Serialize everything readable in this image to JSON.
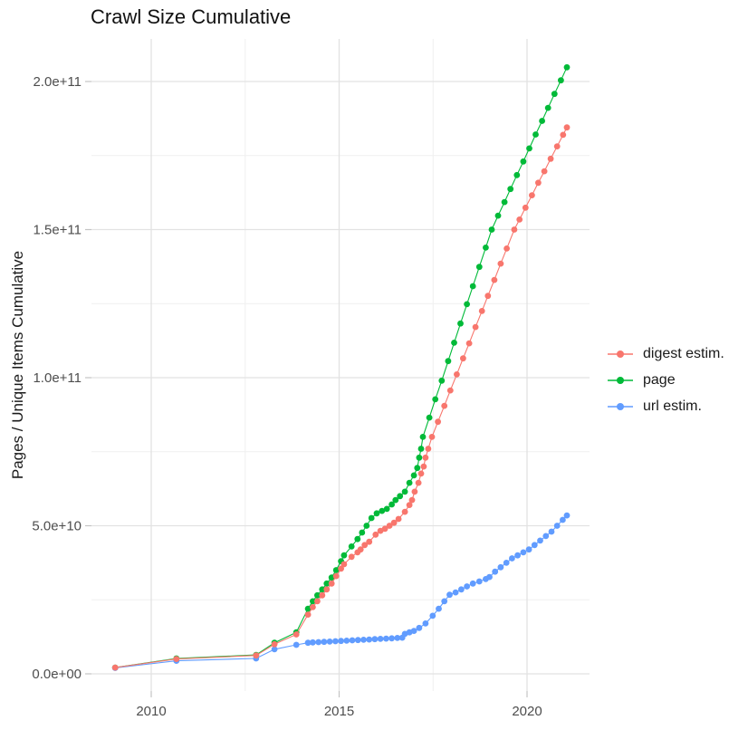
{
  "chart": {
    "title": "Crawl Size Cumulative",
    "ylabel": "Pages / Unique Items Cumulative",
    "xlabel": ""
  },
  "colors": {
    "background": "#ffffff",
    "grid_major": "#e2e2e2",
    "grid_minor": "#efefef",
    "tick_mark": "#c4c4c4",
    "tick_text": "#4d4d4d",
    "title_text": "#111111",
    "series_digest": "#F8766D",
    "series_page": "#00BA38",
    "series_url": "#619CFF"
  },
  "legend": {
    "position": "right"
  },
  "chart_data": {
    "type": "line",
    "points_shown": true,
    "title": "Crawl Size Cumulative",
    "xlabel": "",
    "ylabel": "Pages / Unique Items Cumulative",
    "grid": true,
    "legend_position": "right-center",
    "x_axis": {
      "range": [
        2008.4,
        2021.7
      ],
      "ticks": [
        {
          "label": "2010",
          "value": 2010
        },
        {
          "label": "2015",
          "value": 2015
        },
        {
          "label": "2020",
          "value": 2020
        }
      ],
      "minor": [
        2012.5,
        2017.5
      ]
    },
    "y_axis": {
      "range": [
        -8000000000.0,
        215000000000.0
      ],
      "ticks": [
        {
          "label": "0.0e+00",
          "value": 0
        },
        {
          "label": "5.0e+10",
          "value": 50000000000.0
        },
        {
          "label": "1.0e+11",
          "value": 100000000000.0
        },
        {
          "label": "1.5e+11",
          "value": 150000000000.0
        },
        {
          "label": "2.0e+11",
          "value": 200000000000.0
        }
      ],
      "minor": [
        25000000000.0,
        75000000000.0,
        125000000000.0,
        175000000000.0
      ]
    },
    "series": [
      {
        "name": "digest estim.",
        "color": "#F8766D",
        "points": [
          [
            2009.04,
            2100000000.0
          ],
          [
            2010.67,
            5000000000.0
          ],
          [
            2012.79,
            6200000000.0
          ],
          [
            2013.28,
            10000000000.0
          ],
          [
            2013.86,
            13300000000.0
          ],
          [
            2014.17,
            20000000000.0
          ],
          [
            2014.3,
            22500000000.0
          ],
          [
            2014.42,
            24500000000.0
          ],
          [
            2014.55,
            26500000000.0
          ],
          [
            2014.67,
            28500000000.0
          ],
          [
            2014.8,
            30500000000.0
          ],
          [
            2014.92,
            33000000000.0
          ],
          [
            2015.05,
            35500000000.0
          ],
          [
            2015.13,
            37000000000.0
          ],
          [
            2015.33,
            39500000000.0
          ],
          [
            2015.49,
            41000000000.0
          ],
          [
            2015.57,
            42000000000.0
          ],
          [
            2015.68,
            43500000000.0
          ],
          [
            2015.8,
            44600000000.0
          ],
          [
            2015.97,
            47000000000.0
          ],
          [
            2016.1,
            48300000000.0
          ],
          [
            2016.22,
            49000000000.0
          ],
          [
            2016.34,
            50000000000.0
          ],
          [
            2016.46,
            51000000000.0
          ],
          [
            2016.58,
            52300000000.0
          ],
          [
            2016.75,
            54700000000.0
          ],
          [
            2016.87,
            57000000000.0
          ],
          [
            2016.94,
            58700000000.0
          ],
          [
            2017.01,
            61500000000.0
          ],
          [
            2017.11,
            64500000000.0
          ],
          [
            2017.18,
            67600000000.0
          ],
          [
            2017.25,
            70000000000.0
          ],
          [
            2017.3,
            73000000000.0
          ],
          [
            2017.37,
            76000000000.0
          ],
          [
            2017.47,
            80000000000.0
          ],
          [
            2017.63,
            85100000000.0
          ],
          [
            2017.8,
            90500000000.0
          ],
          [
            2017.96,
            95700000000.0
          ],
          [
            2018.13,
            101100000000.0
          ],
          [
            2018.3,
            106500000000.0
          ],
          [
            2018.46,
            111600000000.0
          ],
          [
            2018.63,
            117100000000.0
          ],
          [
            2018.8,
            122500000000.0
          ],
          [
            2018.96,
            127600000000.0
          ],
          [
            2019.13,
            133000000000.0
          ],
          [
            2019.3,
            138500000000.0
          ],
          [
            2019.46,
            143600000000.0
          ],
          [
            2019.66,
            150000000000.0
          ],
          [
            2019.8,
            153400000000.0
          ],
          [
            2019.96,
            157400000000.0
          ],
          [
            2020.13,
            161600000000.0
          ],
          [
            2020.3,
            165800000000.0
          ],
          [
            2020.46,
            169700000000.0
          ],
          [
            2020.63,
            173900000000.0
          ],
          [
            2020.8,
            178100000000.0
          ],
          [
            2020.96,
            182000000000.0
          ],
          [
            2021.06,
            184500000000.0
          ]
        ]
      },
      {
        "name": "page",
        "color": "#00BA38",
        "points": [
          [
            2009.04,
            2100000000.0
          ],
          [
            2010.67,
            5200000000.0
          ],
          [
            2012.79,
            6400000000.0
          ],
          [
            2013.28,
            10500000000.0
          ],
          [
            2013.86,
            14000000000.0
          ],
          [
            2014.17,
            22000000000.0
          ],
          [
            2014.3,
            24500000000.0
          ],
          [
            2014.42,
            26500000000.0
          ],
          [
            2014.55,
            28500000000.0
          ],
          [
            2014.67,
            30500000000.0
          ],
          [
            2014.8,
            32500000000.0
          ],
          [
            2014.92,
            35000000000.0
          ],
          [
            2015.05,
            38000000000.0
          ],
          [
            2015.13,
            40000000000.0
          ],
          [
            2015.33,
            43000000000.0
          ],
          [
            2015.49,
            45500000000.0
          ],
          [
            2015.61,
            47700000000.0
          ],
          [
            2015.73,
            50000000000.0
          ],
          [
            2015.86,
            52600000000.0
          ],
          [
            2016.0,
            54200000000.0
          ],
          [
            2016.14,
            55000000000.0
          ],
          [
            2016.27,
            55700000000.0
          ],
          [
            2016.4,
            57200000000.0
          ],
          [
            2016.5,
            58700000000.0
          ],
          [
            2016.62,
            60000000000.0
          ],
          [
            2016.75,
            61500000000.0
          ],
          [
            2016.87,
            64500000000.0
          ],
          [
            2016.99,
            67000000000.0
          ],
          [
            2017.08,
            69500000000.0
          ],
          [
            2017.13,
            73000000000.0
          ],
          [
            2017.18,
            76000000000.0
          ],
          [
            2017.23,
            80000000000.0
          ],
          [
            2017.4,
            86500000000.0
          ],
          [
            2017.56,
            92700000000.0
          ],
          [
            2017.73,
            99000000000.0
          ],
          [
            2017.9,
            105600000000.0
          ],
          [
            2018.06,
            111800000000.0
          ],
          [
            2018.23,
            118300000000.0
          ],
          [
            2018.4,
            124800000000.0
          ],
          [
            2018.56,
            130900000000.0
          ],
          [
            2018.73,
            137400000000.0
          ],
          [
            2018.9,
            143900000000.0
          ],
          [
            2019.06,
            150000000000.0
          ],
          [
            2019.23,
            154700000000.0
          ],
          [
            2019.4,
            159300000000.0
          ],
          [
            2019.56,
            163700000000.0
          ],
          [
            2019.73,
            168400000000.0
          ],
          [
            2019.9,
            173000000000.0
          ],
          [
            2020.06,
            177400000000.0
          ],
          [
            2020.23,
            182100000000.0
          ],
          [
            2020.4,
            186700000000.0
          ],
          [
            2020.56,
            191100000000.0
          ],
          [
            2020.73,
            195800000000.0
          ],
          [
            2020.9,
            200400000000.0
          ],
          [
            2021.06,
            204800000000.0
          ]
        ]
      },
      {
        "name": "url estim.",
        "color": "#619CFF",
        "points": [
          [
            2009.04,
            2000000000.0
          ],
          [
            2010.67,
            4400000000.0
          ],
          [
            2012.79,
            5200000000.0
          ],
          [
            2013.28,
            8300000000.0
          ],
          [
            2013.86,
            9800000000.0
          ],
          [
            2014.17,
            10500000000.0
          ],
          [
            2014.3,
            10600000000.0
          ],
          [
            2014.45,
            10700000000.0
          ],
          [
            2014.6,
            10800000000.0
          ],
          [
            2014.75,
            10900000000.0
          ],
          [
            2014.9,
            11000000000.0
          ],
          [
            2015.05,
            11100000000.0
          ],
          [
            2015.2,
            11200000000.0
          ],
          [
            2015.35,
            11300000000.0
          ],
          [
            2015.5,
            11400000000.0
          ],
          [
            2015.65,
            11500000000.0
          ],
          [
            2015.8,
            11600000000.0
          ],
          [
            2015.95,
            11700000000.0
          ],
          [
            2016.1,
            11800000000.0
          ],
          [
            2016.25,
            11900000000.0
          ],
          [
            2016.4,
            12000000000.0
          ],
          [
            2016.55,
            12100000000.0
          ],
          [
            2016.68,
            12200000000.0
          ],
          [
            2016.75,
            13500000000.0
          ],
          [
            2016.87,
            14000000000.0
          ],
          [
            2016.99,
            14500000000.0
          ],
          [
            2017.13,
            15500000000.0
          ],
          [
            2017.3,
            17000000000.0
          ],
          [
            2017.49,
            19600000000.0
          ],
          [
            2017.65,
            22000000000.0
          ],
          [
            2017.8,
            24500000000.0
          ],
          [
            2017.94,
            26700000000.0
          ],
          [
            2018.1,
            27500000000.0
          ],
          [
            2018.25,
            28500000000.0
          ],
          [
            2018.4,
            29500000000.0
          ],
          [
            2018.56,
            30500000000.0
          ],
          [
            2018.73,
            31200000000.0
          ],
          [
            2018.9,
            32000000000.0
          ],
          [
            2019.0,
            32700000000.0
          ],
          [
            2019.15,
            34500000000.0
          ],
          [
            2019.3,
            36000000000.0
          ],
          [
            2019.45,
            37500000000.0
          ],
          [
            2019.6,
            39000000000.0
          ],
          [
            2019.75,
            40000000000.0
          ],
          [
            2019.9,
            41000000000.0
          ],
          [
            2020.05,
            42000000000.0
          ],
          [
            2020.2,
            43500000000.0
          ],
          [
            2020.35,
            45000000000.0
          ],
          [
            2020.5,
            46500000000.0
          ],
          [
            2020.65,
            48000000000.0
          ],
          [
            2020.8,
            50000000000.0
          ],
          [
            2020.95,
            52000000000.0
          ],
          [
            2021.06,
            53500000000.0
          ]
        ]
      }
    ]
  }
}
